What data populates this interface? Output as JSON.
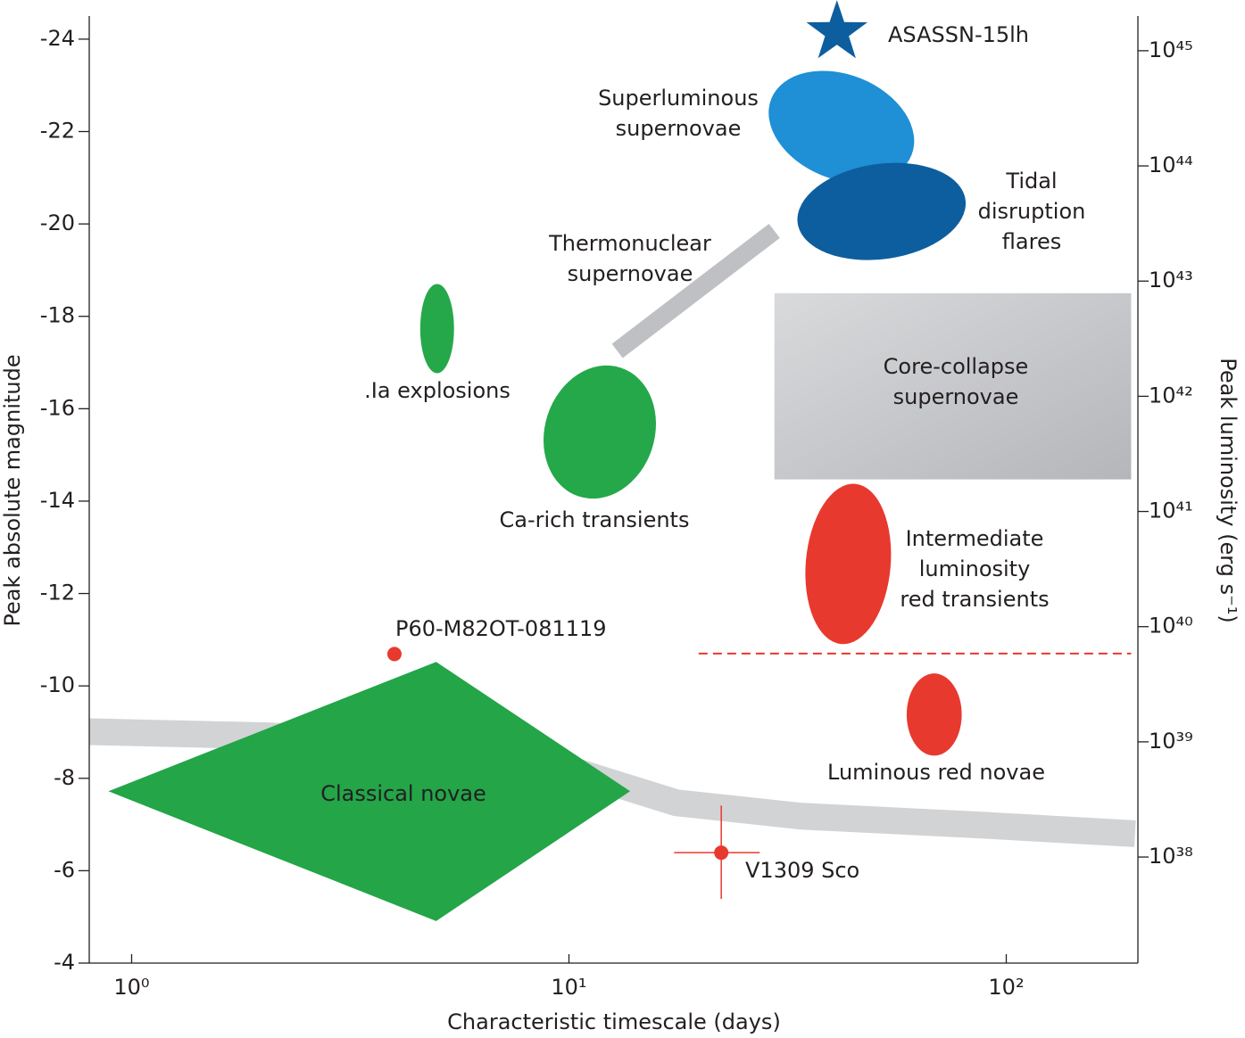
{
  "chart_data": {
    "type": "phase-space",
    "xlabel": "Characteristic timescale (days)",
    "ylabel": "Peak absolute magnitude",
    "y2label": "Peak luminosity (erg s⁻¹)",
    "xscale": "log",
    "y2scale": "log",
    "xlim": [
      0.8,
      200
    ],
    "ylim": [
      -4,
      -24.5
    ],
    "y2lim": [
      1.2e+37,
      2e+45
    ],
    "xticks": [
      {
        "value": 1,
        "label": "10⁰"
      },
      {
        "value": 10,
        "label": "10¹"
      },
      {
        "value": 100,
        "label": "10²"
      }
    ],
    "yticks": [
      -24,
      -22,
      -20,
      -18,
      -16,
      -14,
      -12,
      -10,
      -8,
      -6,
      -4
    ],
    "y2ticks": [
      {
        "value": 1e+38,
        "label": "10³⁸"
      },
      {
        "value": 1e+39,
        "label": "10³⁹"
      },
      {
        "value": 1e+40,
        "label": "10⁴⁰"
      },
      {
        "value": 1e+41,
        "label": "10⁴¹"
      },
      {
        "value": 1e+42,
        "label": "10⁴²"
      },
      {
        "value": 1e+43,
        "label": "10⁴³"
      },
      {
        "value": 1e+44,
        "label": "10⁴⁴"
      },
      {
        "value": 1e+45,
        "label": "10⁴⁵"
      }
    ],
    "bands": [
      {
        "x": [
          0.8,
          2.04,
          5.2,
          8.3,
          12.1,
          17.6,
          34,
          86.9,
          197
        ],
        "values": [
          -9.01,
          -8.92,
          -8.73,
          -8.44,
          -7.95,
          -7.47,
          -7.18,
          -6.99,
          -6.8
        ],
        "color": "#d2d3d5"
      },
      {
        "label": [
          "Thermonuclear",
          "supernovae"
        ],
        "x": [
          12.9,
          29.5
        ],
        "values": [
          -17.25,
          -19.85
        ],
        "color": "#bfc0c3"
      }
    ],
    "regions": [
      {
        "label": [
          "Superluminous",
          "supernovae"
        ],
        "shape": "ellipse",
        "x": [
          28.2,
          62.5
        ],
        "y": [
          -20.97,
          -23.23
        ],
        "color": "#1f8fd6"
      },
      {
        "label": [
          "Tidal",
          "disruption",
          "flares"
        ],
        "shape": "ellipse",
        "x": [
          33.2,
          81
        ],
        "y": [
          -19.24,
          -21.3
        ],
        "color": "#0d5e9e"
      },
      {
        "label": [
          "Core-collapse",
          "supernovae"
        ],
        "shape": "rect",
        "x": [
          29.5,
          193
        ],
        "y": [
          -14.47,
          -18.5
        ],
        "color": "#c9cacd"
      },
      {
        "label": [
          ".Ia explosions"
        ],
        "shape": "ellipse",
        "x": [
          4.57,
          5.46
        ],
        "y": [
          -16.77,
          -18.7
        ],
        "color": "#25a84a"
      },
      {
        "label": [
          "Ca-rich transients"
        ],
        "shape": "ellipse",
        "x": [
          8.81,
          15.7
        ],
        "y": [
          -14.03,
          -16.96
        ],
        "color": "#25a84a"
      },
      {
        "label": [
          "Intermediate",
          "luminosity",
          "red transients"
        ],
        "shape": "ellipse",
        "x": [
          34.8,
          54.4
        ],
        "y": [
          -10.9,
          -14.38
        ],
        "color": "#e8392e"
      },
      {
        "label": [
          "Luminous red novae"
        ],
        "shape": "ellipse",
        "x": [
          59.2,
          79.1
        ],
        "y": [
          -8.49,
          -10.27
        ],
        "color": "#e8392e"
      },
      {
        "label": [
          "Classical novae"
        ],
        "shape": "diamond",
        "x": [
          0.885,
          4.97,
          13.8
        ],
        "y": [
          -4.91,
          -7.72,
          -10.52
        ],
        "color": "#23a548"
      }
    ],
    "points": [
      {
        "label": "ASASSN-15lh",
        "marker": "star",
        "x": 41,
        "y": -24.15,
        "color": "#0d5e9e"
      },
      {
        "label": "P60-M82OT-081119",
        "marker": "circle",
        "x": 3.99,
        "y": -10.69,
        "color": "#e8392e"
      },
      {
        "label": "V1309 Sco",
        "marker": "circle",
        "x": 22.3,
        "y": -6.39,
        "xrange": [
          17.4,
          27.3
        ],
        "yrange": [
          -7.41,
          -5.39
        ],
        "color": "#e8392e"
      }
    ],
    "hlines": [
      {
        "y": -10.7,
        "x": [
          19.8,
          193
        ],
        "color": "#e8392e",
        "style": "dashed"
      }
    ]
  }
}
